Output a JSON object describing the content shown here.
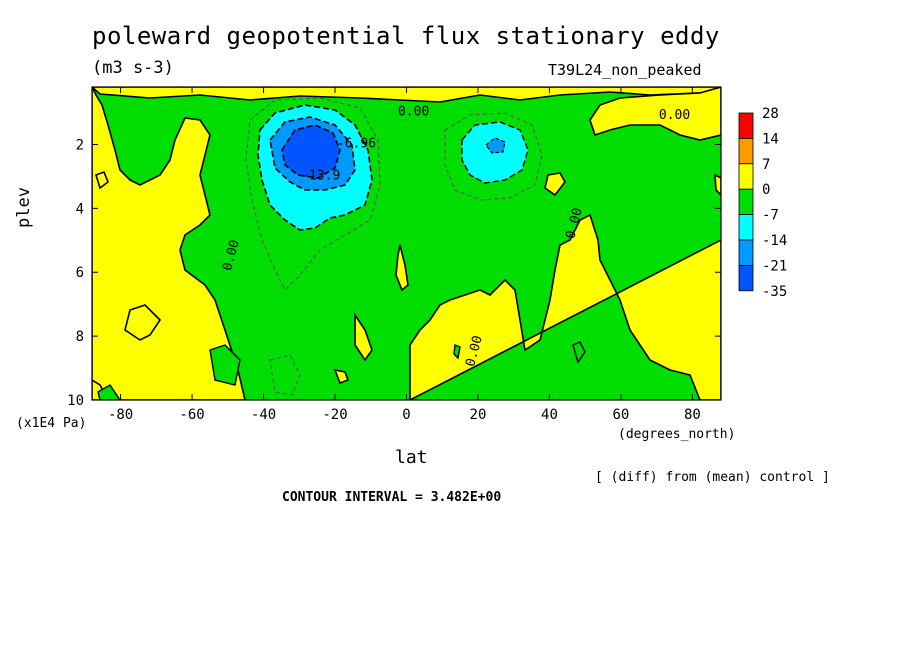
{
  "chart_data": {
    "type": "heatmap",
    "title": "poleward geopotential flux stationary eddy",
    "units": "(m3 s-3)",
    "experiment": "T39L24_non_peaked",
    "xlabel": "lat",
    "xunit": "(degrees_north)",
    "ylabel": "plev",
    "yunit": "(x1E4 Pa)",
    "xlim": [
      -88,
      88
    ],
    "ylim": [
      10,
      0.2
    ],
    "y_inverted": true,
    "xticks": [
      -80,
      -60,
      -40,
      -20,
      0,
      20,
      40,
      60,
      80
    ],
    "yticks": [
      2,
      4,
      6,
      8,
      10
    ],
    "note": "[ (diff) from (mean) control ]",
    "contour_interval": "CONTOUR INTERVAL = 3.482E+00",
    "colorbar": {
      "labels": [
        "28",
        "14",
        "7",
        "0",
        "-7",
        "-14",
        "-21",
        "-35"
      ],
      "colors": [
        "#ff0000",
        "#ff9900",
        "#ffff00",
        "#00dd00",
        "#00ffff",
        "#0099ff",
        "#0055ff"
      ]
    },
    "contour_labels": [
      {
        "text": "0.00",
        "lat": 2,
        "plev": 1.1
      },
      {
        "text": "0.00",
        "lat": 75,
        "plev": 1.2
      },
      {
        "text": "-6.96",
        "lat": -14,
        "plev": 2.1
      },
      {
        "text": "-13.9",
        "lat": -24,
        "plev": 3.1
      },
      {
        "text": "0.00",
        "lat": -48,
        "plev": 5.5
      },
      {
        "text": "0.00",
        "lat": 48,
        "plev": 4.5
      },
      {
        "text": "0.00",
        "lat": 20,
        "plev": 8.5
      }
    ],
    "features": [
      {
        "name": "southern-negative-core",
        "lat": -26,
        "plev": 2.2,
        "value_range": [
          -35,
          -21
        ]
      },
      {
        "name": "northern-negative-core",
        "lat": 25,
        "plev": 2.0,
        "value_range": [
          -21,
          -14
        ]
      },
      {
        "name": "background",
        "value_range": [
          -7,
          0
        ]
      }
    ]
  }
}
